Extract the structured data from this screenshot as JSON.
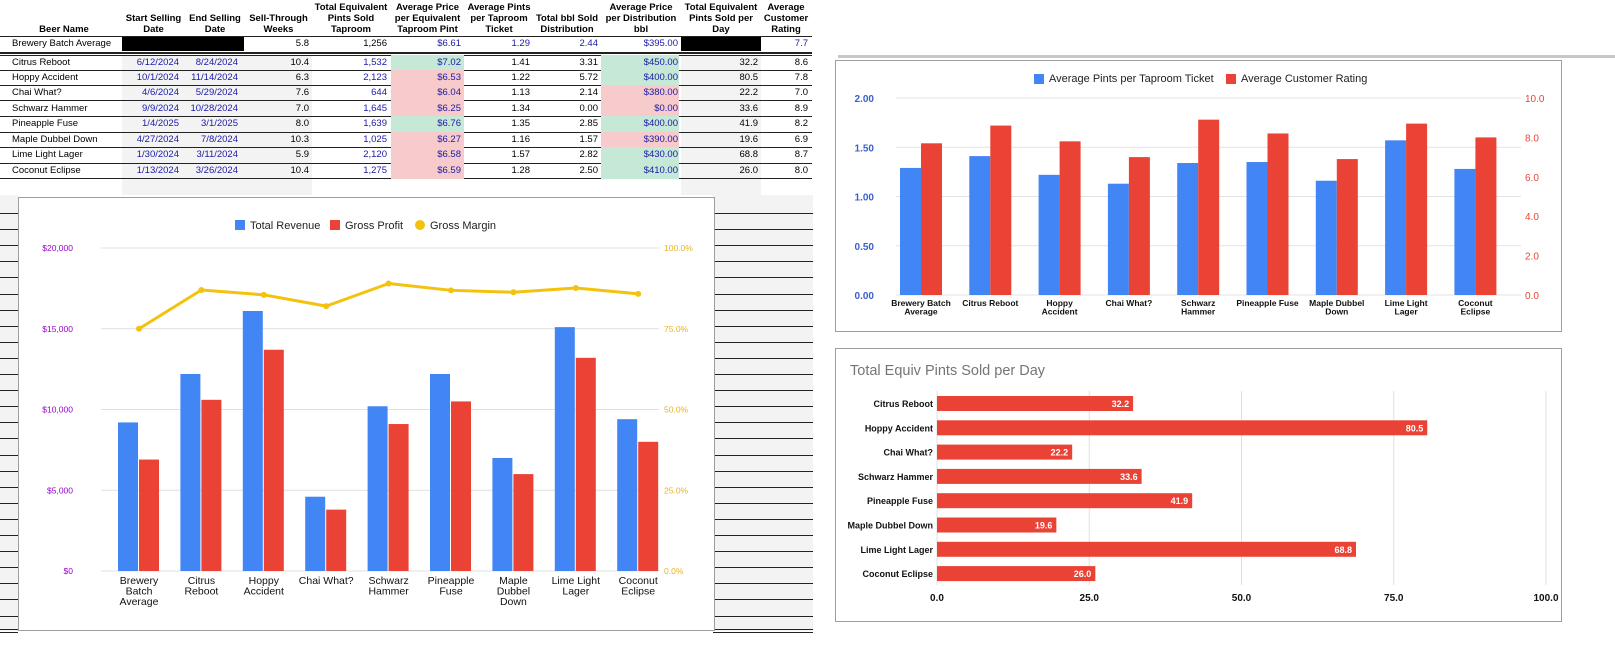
{
  "table": {
    "headers": [
      "Beer Name",
      "Start Selling\nDate",
      "End Selling\nDate",
      "Sell-Through\nWeeks",
      "Total Equivalent\nPints Sold\nTaproom",
      "Average Price\nper Equivalent\nTaproom Pint",
      "Average Pints\nper Taproom\nTicket",
      "Total bbl Sold\nDistribution",
      "Average Price\nper Distribution\nbbl",
      "Total Equivalent\nPints Sold per\nDay",
      "Average\nCustomer\nRating"
    ],
    "average_row": {
      "name": "Brewery Batch Average",
      "weeks": "5.8",
      "pints": "1,256",
      "price": "$6.61",
      "ticket": "1.29",
      "bbl": "2.44",
      "bbl_price": "$395.00",
      "rating": "7.7"
    },
    "rows": [
      {
        "name": "Citrus Reboot",
        "start": "6/12/2024",
        "end": "8/24/2024",
        "weeks": "10.4",
        "pints": "1,532",
        "price": "$7.02",
        "ticket": "1.41",
        "bbl": "3.31",
        "bbl_price": "$450.00",
        "per_day": "32.2",
        "rating": "8.6"
      },
      {
        "name": "Hoppy Accident",
        "start": "10/1/2024",
        "end": "11/14/2024",
        "weeks": "6.3",
        "pints": "2,123",
        "price": "$6.53",
        "ticket": "1.22",
        "bbl": "5.72",
        "bbl_price": "$400.00",
        "per_day": "80.5",
        "rating": "7.8"
      },
      {
        "name": "Chai What?",
        "start": "4/6/2024",
        "end": "5/29/2024",
        "weeks": "7.6",
        "pints": "644",
        "price": "$6.04",
        "ticket": "1.13",
        "bbl": "2.14",
        "bbl_price": "$380.00",
        "per_day": "22.2",
        "rating": "7.0"
      },
      {
        "name": "Schwarz Hammer",
        "start": "9/9/2024",
        "end": "10/28/2024",
        "weeks": "7.0",
        "pints": "1,645",
        "price": "$6.25",
        "ticket": "1.34",
        "bbl": "0.00",
        "bbl_price": "$0.00",
        "per_day": "33.6",
        "rating": "8.9"
      },
      {
        "name": "Pineapple Fuse",
        "start": "1/4/2025",
        "end": "3/1/2025",
        "weeks": "8.0",
        "pints": "1,639",
        "price": "$6.76",
        "ticket": "1.35",
        "bbl": "2.85",
        "bbl_price": "$400.00",
        "per_day": "41.9",
        "rating": "8.2"
      },
      {
        "name": "Maple Dubbel Down",
        "start": "4/27/2024",
        "end": "7/8/2024",
        "weeks": "10.3",
        "pints": "1,025",
        "price": "$6.27",
        "ticket": "1.16",
        "bbl": "1.57",
        "bbl_price": "$390.00",
        "per_day": "19.6",
        "rating": "6.9"
      },
      {
        "name": "Lime Light Lager",
        "start": "1/30/2024",
        "end": "3/11/2024",
        "weeks": "5.9",
        "pints": "2,120",
        "price": "$6.58",
        "ticket": "1.57",
        "bbl": "2.82",
        "bbl_price": "$430.00",
        "per_day": "68.8",
        "rating": "8.7"
      },
      {
        "name": "Coconut Eclipse",
        "start": "1/13/2024",
        "end": "3/26/2024",
        "weeks": "10.4",
        "pints": "1,275",
        "price": "$6.59",
        "ticket": "1.28",
        "bbl": "2.50",
        "bbl_price": "$410.00",
        "per_day": "26.0",
        "rating": "8.0"
      }
    ],
    "price_colors": [
      "green",
      "red",
      "red",
      "red",
      "green",
      "red",
      "red",
      "red"
    ],
    "bbl_price_colors": [
      "green",
      "green",
      "red",
      "red",
      "green",
      "red",
      "green",
      "green"
    ]
  },
  "colors": {
    "blue": "#4285f4",
    "red": "#ea4335",
    "yellow": "#f4c20d",
    "axis_left_purple": "#9900cc",
    "axis_right_gold": "#e6b422",
    "axis_right_red": "#ea4335",
    "axis_left_blue": "#3a5fcd"
  },
  "chart_data": [
    {
      "type": "bar",
      "title": "",
      "categories": [
        "Brewery\nBatch\nAverage",
        "Citrus\nReboot",
        "Hoppy\nAccident",
        "Chai What?",
        "Schwarz\nHammer",
        "Pineapple\nFuse",
        "Maple\nDubbel\nDown",
        "Lime Light\nLager",
        "Coconut\nEclipse"
      ],
      "series": [
        {
          "name": "Total Revenue",
          "axis": "left",
          "values": [
            9200,
            12200,
            16100,
            4600,
            10200,
            12200,
            7000,
            15100,
            9400
          ]
        },
        {
          "name": "Gross Profit",
          "axis": "left",
          "values": [
            6900,
            10600,
            13700,
            3800,
            9100,
            10500,
            6000,
            13200,
            8000
          ]
        },
        {
          "name": "Gross Margin",
          "axis": "right",
          "line": true,
          "values": [
            75.0,
            87.0,
            85.5,
            82.0,
            89.0,
            86.9,
            86.3,
            87.6,
            85.8
          ]
        }
      ],
      "left_ticks": [
        "$0",
        "$5,000",
        "$10,000",
        "$15,000",
        "$20,000"
      ],
      "right_ticks": [
        "0.0%",
        "25.0%",
        "50.0%",
        "75.0%",
        "100.0%"
      ],
      "ylim_left": [
        0,
        20000
      ],
      "ylim_right": [
        0,
        100
      ],
      "legend": "top"
    },
    {
      "type": "bar",
      "title": "",
      "categories": [
        "Brewery Batch\nAverage",
        "Citrus Reboot",
        "Hoppy\nAccident",
        "Chai What?",
        "Schwarz\nHammer",
        "Pineapple Fuse",
        "Maple Dubbel\nDown",
        "Lime Light\nLager",
        "Coconut\nEclipse"
      ],
      "series": [
        {
          "name": "Average Pints per Taproom Ticket",
          "axis": "left",
          "values": [
            1.29,
            1.41,
            1.22,
            1.13,
            1.34,
            1.35,
            1.16,
            1.57,
            1.28
          ]
        },
        {
          "name": "Average Customer Rating",
          "axis": "right",
          "values": [
            7.7,
            8.6,
            7.8,
            7.0,
            8.9,
            8.2,
            6.9,
            8.7,
            8.0
          ]
        }
      ],
      "left_ticks": [
        "0.00",
        "0.50",
        "1.00",
        "1.50",
        "2.00"
      ],
      "right_ticks": [
        "0.0",
        "2.0",
        "4.0",
        "6.0",
        "8.0",
        "10.0"
      ],
      "ylim_left": [
        0,
        2
      ],
      "ylim_right": [
        0,
        10
      ],
      "legend": "top"
    },
    {
      "type": "bar",
      "orientation": "horizontal",
      "title": "Total Equiv Pints Sold per Day",
      "categories": [
        "Citrus Reboot",
        "Hoppy Accident",
        "Chai What?",
        "Schwarz Hammer",
        "Pineapple Fuse",
        "Maple Dubbel Down",
        "Lime Light Lager",
        "Coconut Eclipse"
      ],
      "values": [
        32.2,
        80.5,
        22.2,
        33.6,
        41.9,
        19.6,
        68.8,
        26.0
      ],
      "data_labels": [
        "32.2",
        "80.5",
        "22.2",
        "33.6",
        "41.9",
        "19.6",
        "68.8",
        "26.0"
      ],
      "x_ticks": [
        "0.0",
        "25.0",
        "50.0",
        "75.0",
        "100.0"
      ],
      "xlim": [
        0,
        100
      ]
    }
  ]
}
